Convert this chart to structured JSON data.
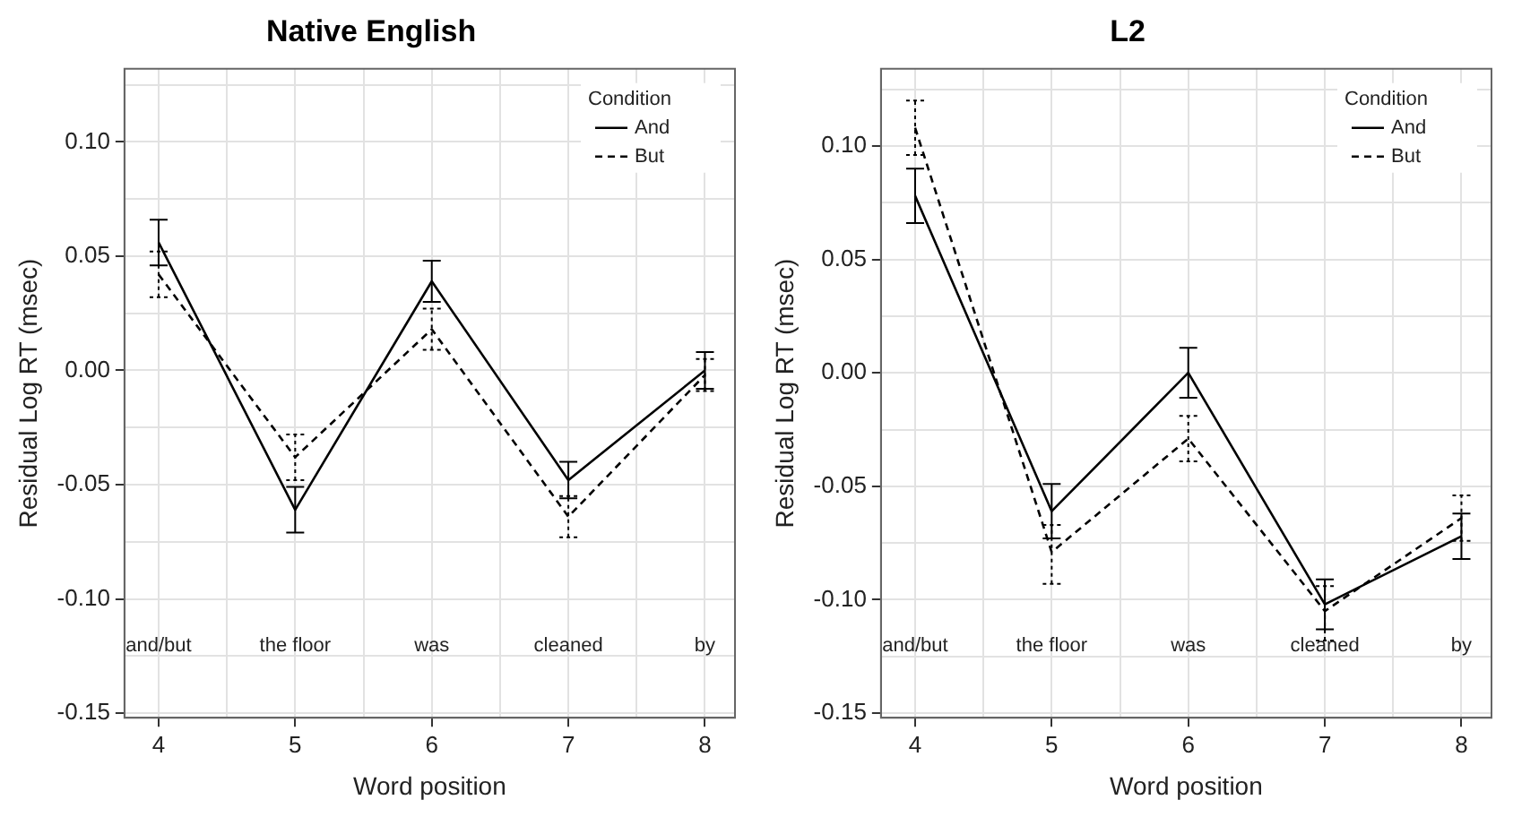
{
  "chart_data": [
    {
      "type": "line",
      "title": "Native English",
      "xlabel": "Word position",
      "ylabel": "Residual Log RT (msec)",
      "legend_title": "Condition",
      "x": [
        4,
        5,
        6,
        7,
        8
      ],
      "series": [
        {
          "name": "And",
          "color": "#000000",
          "line_style": "solid",
          "values": [
            0.056,
            -0.061,
            0.039,
            -0.048,
            0.0
          ],
          "errors": [
            0.01,
            0.01,
            0.009,
            0.008,
            0.008
          ]
        },
        {
          "name": "But",
          "color": "#000000",
          "line_style": "dashed",
          "values": [
            0.042,
            -0.038,
            0.018,
            -0.064,
            -0.002
          ],
          "errors": [
            0.01,
            0.01,
            0.009,
            0.009,
            0.007
          ]
        }
      ],
      "xlim": [
        3.75,
        8.22
      ],
      "xticks": [
        4,
        {
          "value": 4.5,
          "label": null
        },
        5,
        {
          "value": 5.5,
          "label": null
        },
        6,
        {
          "value": 6.5,
          "label": null
        },
        7,
        {
          "value": 7.5,
          "label": null
        },
        8
      ],
      "ylim": [
        -0.152,
        0.132
      ],
      "yticks": [
        {
          "value": -0.15,
          "label": "-0.15"
        },
        {
          "value": -0.125,
          "label": null
        },
        {
          "value": -0.1,
          "label": "-0.10"
        },
        {
          "value": -0.075,
          "label": null
        },
        {
          "value": -0.05,
          "label": "-0.05"
        },
        {
          "value": -0.025,
          "label": null
        },
        {
          "value": 0,
          "label": "0.00"
        },
        {
          "value": 0.025,
          "label": null
        },
        {
          "value": 0.05,
          "label": "0.05"
        },
        {
          "value": 0.075,
          "label": null
        },
        {
          "value": 0.1,
          "label": "0.10"
        },
        {
          "value": 0.125,
          "label": null
        }
      ],
      "annotations": [
        "and/but",
        "the floor",
        "was",
        "cleaned",
        "by"
      ],
      "grid": true,
      "legend": "top right",
      "marker": "none"
    },
    {
      "type": "line",
      "title": "L2",
      "xlabel": "Word position",
      "ylabel": "Residual Log RT (msec)",
      "legend_title": "Condition",
      "x": [
        4,
        5,
        6,
        7,
        8
      ],
      "series": [
        {
          "name": "And",
          "color": "#000000",
          "line_style": "solid",
          "values": [
            0.078,
            -0.061,
            0.0,
            -0.102,
            -0.072
          ],
          "errors": [
            0.012,
            0.012,
            0.011,
            0.011,
            0.01
          ]
        },
        {
          "name": "But",
          "color": "#000000",
          "line_style": "dashed",
          "values": [
            0.108,
            -0.079,
            -0.029,
            -0.105,
            -0.064
          ],
          "errors": [
            0.012,
            [
              -0.093,
              -0.067
            ],
            0.01,
            [
              -0.118,
              -0.094
            ],
            0.01
          ]
        }
      ],
      "xlim": [
        3.75,
        8.22
      ],
      "xticks": [
        4,
        {
          "value": 4.5,
          "label": null
        },
        5,
        {
          "value": 5.5,
          "label": null
        },
        6,
        {
          "value": 6.5,
          "label": null
        },
        7,
        {
          "value": 7.5,
          "label": null
        },
        8
      ],
      "ylim": [
        -0.152,
        0.134
      ],
      "yticks": [
        {
          "value": -0.15,
          "label": "-0.15"
        },
        {
          "value": -0.125,
          "label": null
        },
        {
          "value": -0.1,
          "label": "-0.10"
        },
        {
          "value": -0.075,
          "label": null
        },
        {
          "value": -0.05,
          "label": "-0.05"
        },
        {
          "value": -0.025,
          "label": null
        },
        {
          "value": 0,
          "label": "0.00"
        },
        {
          "value": 0.025,
          "label": null
        },
        {
          "value": 0.05,
          "label": "0.05"
        },
        {
          "value": 0.075,
          "label": null
        },
        {
          "value": 0.1,
          "label": "0.10"
        },
        {
          "value": 0.125,
          "label": null
        }
      ],
      "annotations": [
        "and/but",
        "the floor",
        "was",
        "cleaned",
        "by"
      ],
      "grid": true,
      "legend": "top right",
      "marker": "none"
    }
  ]
}
